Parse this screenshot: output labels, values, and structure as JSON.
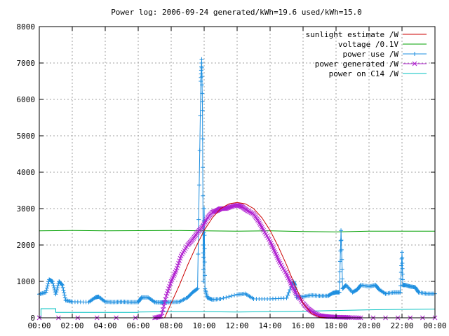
{
  "chart_data": {
    "type": "line",
    "title": "Power log: 2006-09-24 generated/kWh=19.6 used/kWh=15.0",
    "xlabel": "",
    "ylabel": "",
    "xlim": [
      0,
      24
    ],
    "ylim": [
      0,
      8000
    ],
    "x_ticks": [
      "00:00",
      "02:00",
      "04:00",
      "06:00",
      "08:00",
      "10:00",
      "12:00",
      "14:00",
      "16:00",
      "18:00",
      "20:00",
      "22:00",
      "00:00"
    ],
    "y_ticks": [
      "0",
      "1000",
      "2000",
      "3000",
      "4000",
      "5000",
      "6000",
      "7000",
      "8000"
    ],
    "grid": true,
    "legend_position": "top-right",
    "colors": {
      "sunlight": "#cc0000",
      "voltage": "#00a000",
      "power_use": "#1e8fe0",
      "power_generated": "#b020d0",
      "power_c14": "#00c0c0"
    },
    "series": [
      {
        "name": "sunlight estimate /W",
        "key": "sunlight",
        "marker": "none",
        "x": [
          0,
          7.6,
          8.0,
          8.5,
          9.0,
          9.5,
          10.0,
          10.5,
          11.0,
          11.5,
          12.0,
          12.5,
          13.0,
          13.5,
          14.0,
          14.5,
          15.0,
          15.5,
          16.0,
          16.5,
          17.0,
          17.5,
          18.0,
          24
        ],
        "y": [
          0,
          0,
          400,
          900,
          1450,
          1950,
          2400,
          2750,
          3000,
          3130,
          3170,
          3130,
          3000,
          2750,
          2400,
          1950,
          1450,
          900,
          400,
          120,
          20,
          0,
          0,
          0
        ]
      },
      {
        "name": "voltage /0.1V",
        "key": "voltage",
        "marker": "none",
        "x": [
          0,
          2,
          4,
          6,
          8,
          10,
          12,
          14,
          16,
          18,
          20,
          22,
          24
        ],
        "y": [
          2390,
          2400,
          2390,
          2395,
          2400,
          2390,
          2380,
          2390,
          2370,
          2360,
          2380,
          2380,
          2380
        ]
      },
      {
        "name": "power use /W",
        "key": "power_use",
        "marker": "plus",
        "x": [
          0,
          0.4,
          0.6,
          0.8,
          1.0,
          1.2,
          1.4,
          1.6,
          2.0,
          3.0,
          3.4,
          3.6,
          4.0,
          4.5,
          5.0,
          5.5,
          6.0,
          6.2,
          6.6,
          7.0,
          7.4,
          7.6,
          8.0,
          8.5,
          9.0,
          9.3,
          9.6,
          9.8,
          9.85,
          9.9,
          9.95,
          10.0,
          10.05,
          10.2,
          10.5,
          11.0,
          12.0,
          12.5,
          13.0,
          14.0,
          15.0,
          15.4,
          15.5,
          15.6,
          16.0,
          16.5,
          17.0,
          17.5,
          17.8,
          18.0,
          18.2,
          18.3,
          18.4,
          18.6,
          19.0,
          19.3,
          19.5,
          20.0,
          20.4,
          20.6,
          21.0,
          21.5,
          21.9,
          22.0,
          22.05,
          22.2,
          22.5,
          22.8,
          23.0,
          23.5,
          24.0
        ],
        "y": [
          650,
          700,
          1050,
          1000,
          650,
          1000,
          900,
          480,
          440,
          430,
          560,
          580,
          440,
          430,
          440,
          430,
          430,
          560,
          560,
          430,
          420,
          430,
          430,
          440,
          560,
          700,
          800,
          6500,
          7100,
          5700,
          1000,
          3000,
          800,
          550,
          500,
          520,
          640,
          660,
          520,
          520,
          540,
          1000,
          900,
          560,
          580,
          620,
          600,
          600,
          680,
          700,
          700,
          2400,
          800,
          900,
          700,
          780,
          900,
          860,
          900,
          780,
          660,
          700,
          700,
          1800,
          900,
          900,
          860,
          840,
          700,
          660,
          660
        ]
      },
      {
        "name": "power generated /W",
        "key": "power_generated",
        "marker": "cross",
        "x": [
          0,
          7.0,
          7.4,
          7.7,
          8.0,
          8.3,
          8.6,
          9.0,
          9.3,
          9.6,
          9.9,
          10.2,
          10.5,
          10.8,
          11.0,
          11.3,
          11.6,
          12.0,
          12.3,
          12.6,
          13.0,
          13.3,
          13.6,
          14.0,
          14.3,
          14.6,
          15.0,
          15.3,
          15.6,
          16.0,
          16.3,
          16.6,
          17.0,
          17.3,
          17.6,
          18.0,
          18.4,
          18.8,
          19.5,
          24
        ],
        "y": [
          0,
          0,
          40,
          600,
          1000,
          1300,
          1700,
          2000,
          2150,
          2350,
          2500,
          2750,
          2900,
          2950,
          3000,
          3000,
          3050,
          3100,
          3050,
          2950,
          2850,
          2650,
          2400,
          2100,
          1800,
          1500,
          1200,
          900,
          650,
          400,
          250,
          150,
          60,
          40,
          30,
          20,
          15,
          10,
          0,
          0
        ]
      },
      {
        "name": "power on C14 /W",
        "key": "power_c14",
        "marker": "none",
        "x": [
          0,
          0.1,
          0.1,
          1.0,
          1.0,
          6.0,
          6.0,
          8.0,
          10.0,
          12.0,
          14.0,
          16.0,
          18.0,
          20.0,
          22.0,
          24.0
        ],
        "y": [
          0,
          0,
          250,
          250,
          150,
          150,
          160,
          170,
          170,
          160,
          170,
          180,
          200,
          220,
          230,
          240
        ]
      }
    ]
  }
}
